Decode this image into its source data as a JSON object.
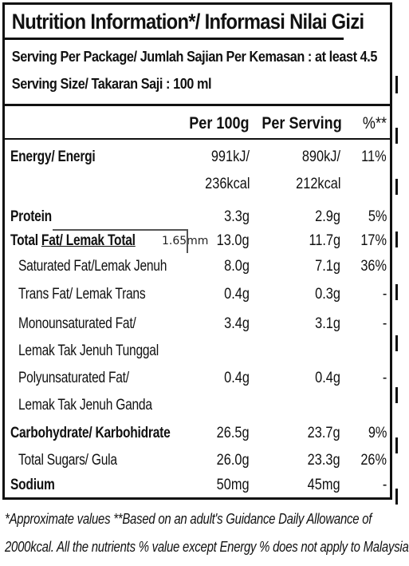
{
  "title": "Nutrition Information*/ Informasi Nilai Gizi",
  "serving_per_package": "Serving Per Package/ Jumlah Sajian Per Kemasan : at least 4.5",
  "serving_size": "Serving Size/ Takaran Saji : 100 ml",
  "columns": {
    "per100": "Per 100g",
    "perserving": "Per Serving",
    "pct": "%**"
  },
  "energy": {
    "label": "Energy/ Energi",
    "per100_kj": "991kJ/",
    "per100_kcal": "236kcal",
    "serv_kj": "890kJ/",
    "serv_kcal": "212kcal",
    "pct": "11%"
  },
  "protein": {
    "label": "Protein",
    "per100": "3.3g",
    "serv": "2.9g",
    "pct": "5%"
  },
  "total_fat": {
    "label_a": "Total ",
    "label_b": "Fat/ Lemak Total",
    "measure": "1.65mm",
    "per100": "13.0g",
    "serv": "11.7g",
    "pct": "17%"
  },
  "sat_fat": {
    "label": "Saturated Fat/Lemak Jenuh",
    "per100": "8.0g",
    "serv": "7.1g",
    "pct": "36%"
  },
  "trans_fat": {
    "label": "Trans Fat/ Lemak Trans",
    "per100": "0.4g",
    "serv": "0.3g",
    "pct": "-"
  },
  "mono_fat": {
    "label": "Monounsaturated Fat/",
    "label2": "Lemak Tak Jenuh Tunggal",
    "per100": "3.4g",
    "serv": "3.1g",
    "pct": "-"
  },
  "poly_fat": {
    "label": "Polyunsaturated Fat/",
    "label2": "Lemak Tak Jenuh Ganda",
    "per100": "0.4g",
    "serv": "0.4g",
    "pct": "-"
  },
  "carb": {
    "label": "Carbohydrate/ Karbohidrate",
    "per100": "26.5g",
    "serv": "23.7g",
    "pct": "9%"
  },
  "sugars": {
    "label": "Total Sugars/ Gula",
    "per100": "26.0g",
    "serv": "23.3g",
    "pct": "26%"
  },
  "sodium": {
    "label": "Sodium",
    "per100": "50mg",
    "serv": "45mg",
    "pct": "-"
  },
  "footnote_1": "*Approximate values  **Based on an adult's  Guidance Daily Allowance of",
  "footnote_2": "2000kcal. All the nutrients % value except Energy % does not apply to Malaysia"
}
